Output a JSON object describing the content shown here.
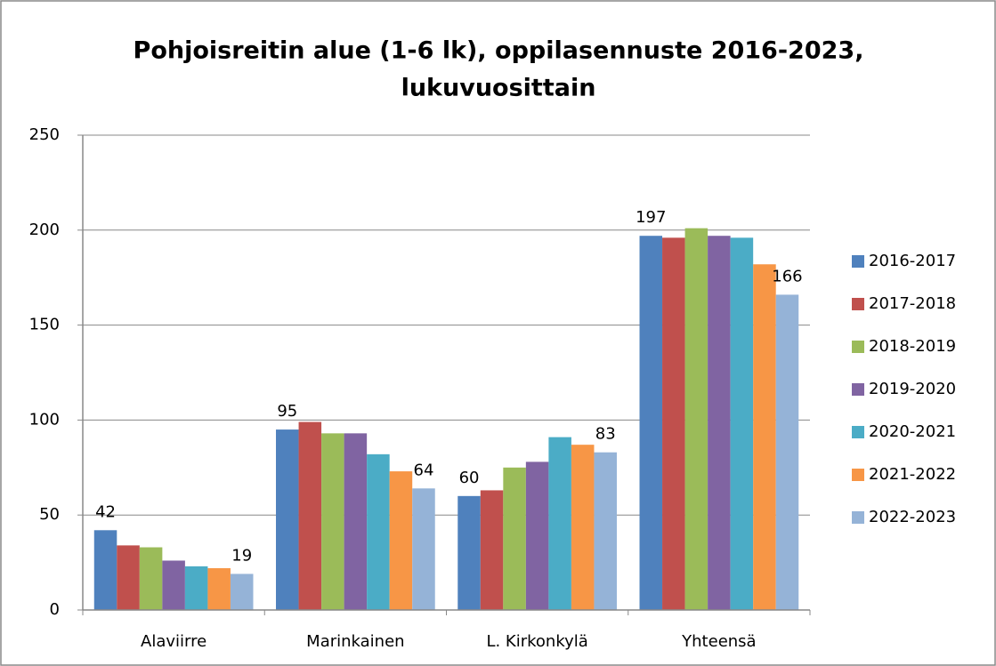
{
  "chart_data": {
    "type": "bar",
    "title": [
      "Pohjoisreitin alue (1-6 lk), oppilasennuste 2016-2023,",
      "lukuvuosittain"
    ],
    "categories": [
      "Alaviirre",
      "Marinkainen",
      "L. Kirkonkylä",
      "Yhteensä"
    ],
    "series": [
      {
        "name": "2016-2017",
        "color": "#4F81BD",
        "values": [
          42,
          95,
          60,
          197
        ],
        "show_labels": true
      },
      {
        "name": "2017-2018",
        "color": "#C0504D",
        "values": [
          34,
          99,
          63,
          196
        ],
        "show_labels": false
      },
      {
        "name": "2018-2019",
        "color": "#9BBB59",
        "values": [
          33,
          93,
          75,
          201
        ],
        "show_labels": false
      },
      {
        "name": "2019-2020",
        "color": "#8064A2",
        "values": [
          26,
          93,
          78,
          197
        ],
        "show_labels": false
      },
      {
        "name": "2020-2021",
        "color": "#4BACC6",
        "values": [
          23,
          82,
          91,
          196
        ],
        "show_labels": false
      },
      {
        "name": "2021-2022",
        "color": "#F79646",
        "values": [
          22,
          73,
          87,
          182
        ],
        "show_labels": false
      },
      {
        "name": "2022-2023",
        "color": "#95B3D7",
        "values": [
          19,
          64,
          83,
          166
        ],
        "show_labels": true
      }
    ],
    "ylim": [
      0,
      250
    ],
    "yticks": [
      0,
      50,
      100,
      150,
      200,
      250
    ],
    "grid": true,
    "legend": "right"
  }
}
